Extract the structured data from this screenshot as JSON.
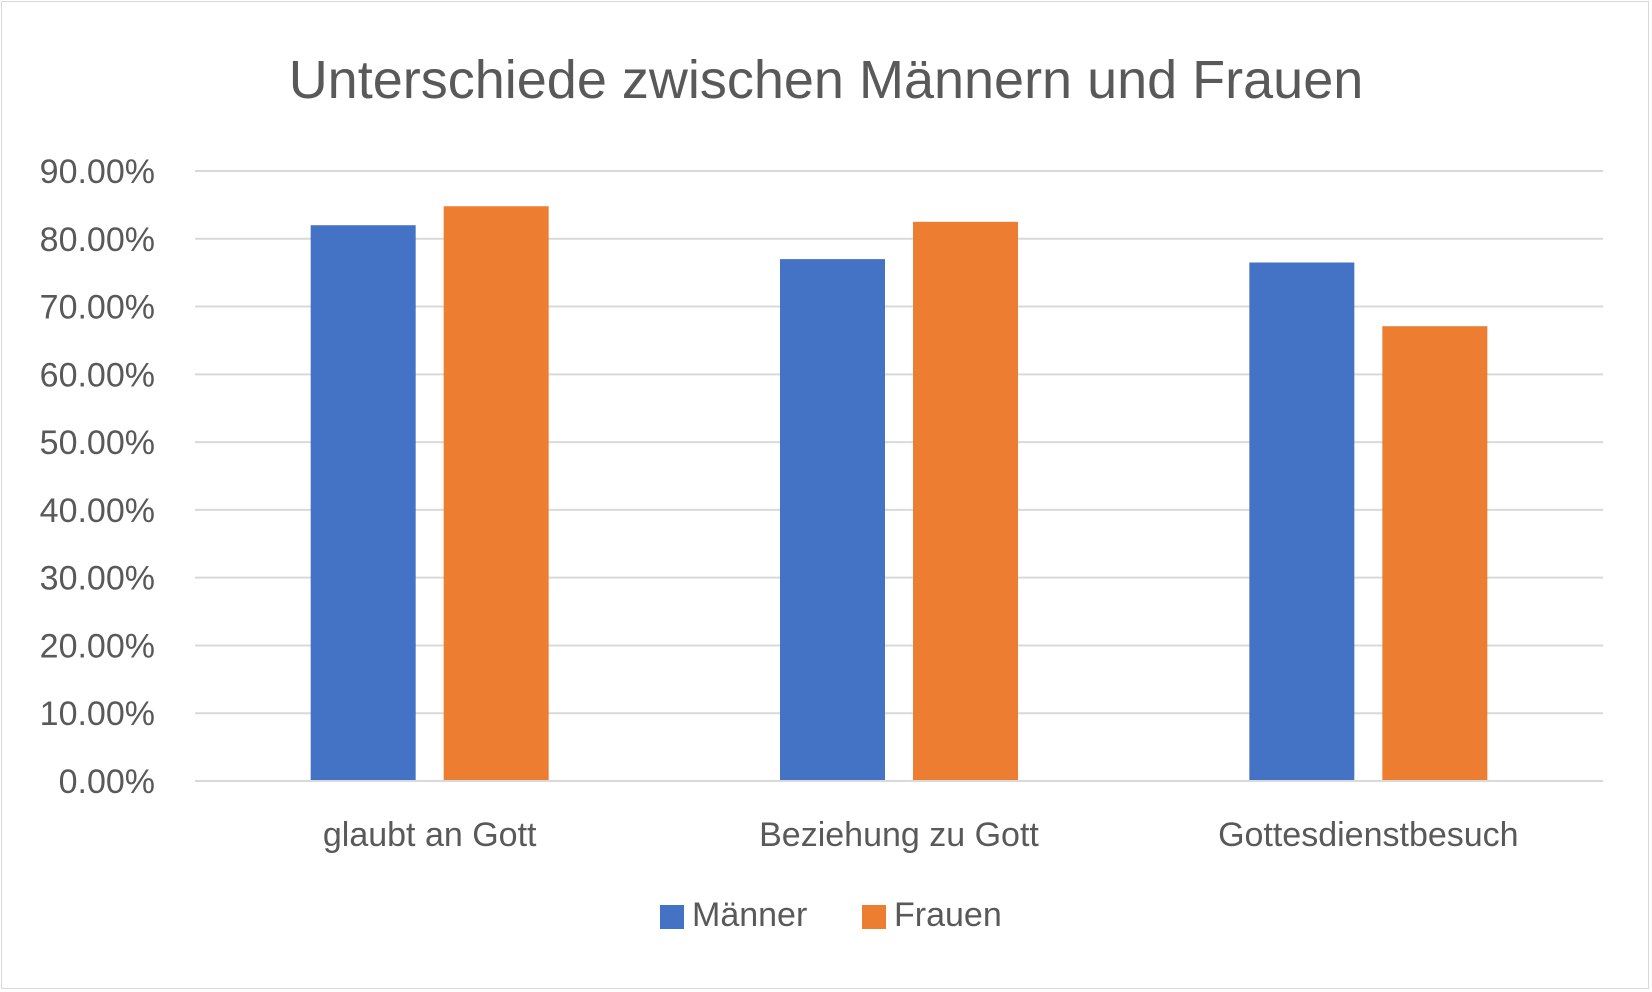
{
  "chart_data": {
    "type": "bar",
    "title": "Unterschiede zwischen Männern und Frauen",
    "xlabel": "",
    "ylabel": "",
    "categories": [
      "glaubt an Gott",
      "Beziehung zu Gott",
      "Gottesdienstbesuch"
    ],
    "series": [
      {
        "name": "Männer",
        "color": "#4472c4",
        "values": [
          0.82,
          0.77,
          0.765
        ]
      },
      {
        "name": "Frauen",
        "color": "#ed7d31",
        "values": [
          0.848,
          0.825,
          0.671
        ]
      }
    ],
    "ylim": [
      0,
      0.9
    ],
    "yticks": [
      0,
      0.1,
      0.2,
      0.3,
      0.4,
      0.5,
      0.6,
      0.7,
      0.8,
      0.9
    ],
    "ytick_labels": [
      "0.00%",
      "10.00%",
      "20.00%",
      "30.00%",
      "40.00%",
      "50.00%",
      "60.00%",
      "70.00%",
      "80.00%",
      "90.00%"
    ],
    "grid": true,
    "legend_position": "bottom"
  }
}
